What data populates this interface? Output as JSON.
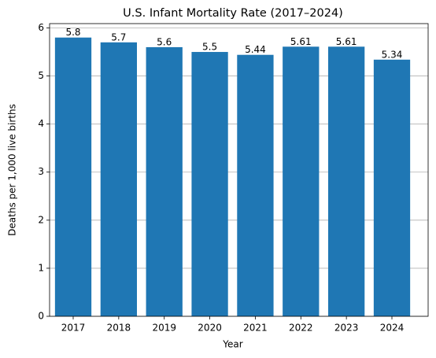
{
  "chart_data": {
    "type": "bar",
    "title": "U.S. Infant Mortality Rate (2017–2024)",
    "x_label": "Year",
    "y_label": "Deaths per 1,000 live births",
    "categories": [
      "2017",
      "2018",
      "2019",
      "2020",
      "2021",
      "2022",
      "2023",
      "2024"
    ],
    "values": [
      5.8,
      5.7,
      5.6,
      5.5,
      5.44,
      5.61,
      5.61,
      5.34
    ],
    "color": "#1f77b4",
    "ylim": [
      0,
      6.09
    ],
    "yticks": [
      0,
      1,
      2,
      3,
      4,
      5,
      6
    ],
    "grid": true
  }
}
